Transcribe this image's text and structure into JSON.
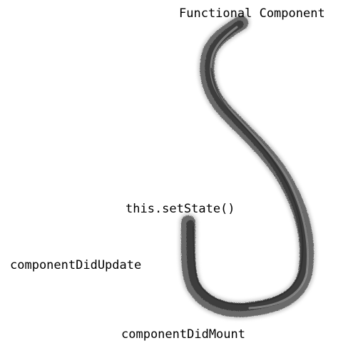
{
  "labels": {
    "functional_component": "Functional Component",
    "set_state": "this.setState()",
    "component_did_update": "componentDidUpdate",
    "component_did_mount": "componentDidMount"
  },
  "colors": {
    "stroke_dark": "#3c3c3c",
    "stroke_mid": "#6a6a6a",
    "stroke_light": "#9a9a9a",
    "text": "#000000",
    "background": "#ffffff"
  },
  "icons": {
    "hook": "fishing-hook-brush-stroke"
  }
}
